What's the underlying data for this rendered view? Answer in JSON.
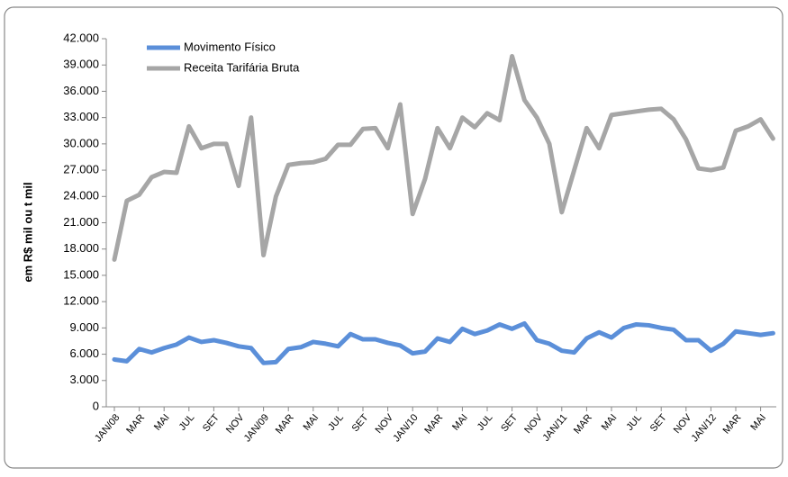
{
  "chart_data": {
    "type": "line",
    "ylabel": "em R$ mil ou t mil",
    "categories": [
      "JAN/08",
      null,
      "MAR",
      null,
      "MAI",
      null,
      "JUL",
      null,
      "SET",
      null,
      "NOV",
      null,
      "JAN/09",
      null,
      "MAR",
      null,
      "MAI",
      null,
      "JUL",
      null,
      "SET",
      null,
      "NOV",
      null,
      "JAN/10",
      null,
      "MAR",
      null,
      "MAI",
      null,
      "JUL",
      null,
      "SET",
      null,
      "NOV",
      null,
      "JAN/11",
      null,
      "MAR",
      null,
      "MAI",
      null,
      "JUL",
      null,
      "SET",
      null,
      "NOV",
      null,
      "JAN/12",
      null,
      "MAR",
      null,
      "MAI",
      null
    ],
    "series": [
      {
        "name": "Movimento Físico",
        "color": "#5b8fd9",
        "values": [
          5400,
          5200,
          6600,
          6200,
          6700,
          7100,
          7900,
          7400,
          7600,
          7300,
          6900,
          6700,
          5000,
          5100,
          6600,
          6800,
          7400,
          7200,
          6900,
          8300,
          7700,
          7700,
          7300,
          7000,
          6100,
          6300,
          7800,
          7400,
          8900,
          8300,
          8700,
          9400,
          8900,
          9500,
          7600,
          7200,
          6400,
          6200,
          7800,
          8500,
          7900,
          9000,
          9400,
          9300,
          9000,
          8800,
          7600,
          7600,
          6400,
          7200,
          8600,
          8400,
          8200,
          8400
        ]
      },
      {
        "name": "Receita Tarifária Bruta",
        "color": "#a6a6a6",
        "values": [
          16800,
          23500,
          24200,
          26200,
          26800,
          26700,
          32000,
          29500,
          30000,
          30000,
          25200,
          33000,
          17300,
          24000,
          27600,
          27800,
          27900,
          28300,
          29900,
          29900,
          31700,
          31800,
          29500,
          34500,
          22000,
          26000,
          31800,
          29500,
          33000,
          31900,
          33500,
          32700,
          40000,
          35000,
          33000,
          30000,
          22200,
          27000,
          31800,
          29500,
          33300,
          33500,
          33700,
          33900,
          34000,
          32800,
          30500,
          27200,
          27000,
          27300,
          31500,
          32000,
          32800,
          30600
        ]
      }
    ],
    "ylim": [
      0,
      42000
    ],
    "yticks": [
      0,
      {
        "value": 3000,
        "label": "3.000"
      },
      {
        "value": 6000,
        "label": "6.000"
      },
      {
        "value": 9000,
        "label": "9.000"
      },
      {
        "value": 12000,
        "label": "12.000"
      },
      {
        "value": 15000,
        "label": "15.000"
      },
      {
        "value": 18000,
        "label": "18.000"
      },
      {
        "value": 21000,
        "label": "21.000"
      },
      {
        "value": 24000,
        "label": "24.000"
      },
      {
        "value": 27000,
        "label": "27.000"
      },
      {
        "value": 30000,
        "label": "30.000"
      },
      {
        "value": 33000,
        "label": "33.000"
      },
      {
        "value": 36000,
        "label": "36.000"
      },
      {
        "value": 39000,
        "label": "39.000"
      },
      {
        "value": 42000,
        "label": "42.000"
      }
    ],
    "grid": false,
    "legend": "upper left"
  }
}
